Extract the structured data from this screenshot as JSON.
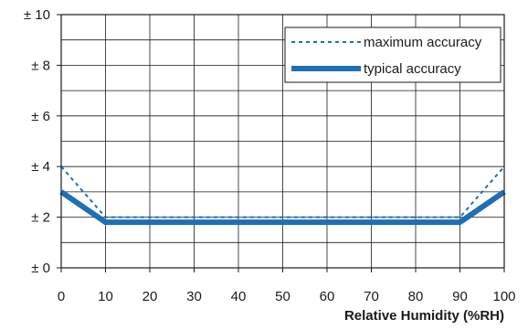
{
  "chart_data": {
    "type": "line",
    "title": "",
    "xlabel": "Relative Humidity (%RH)",
    "ylabel": "",
    "xlim": [
      0,
      100
    ],
    "ylim": [
      0,
      10
    ],
    "grid": true,
    "legend_position": "top-right",
    "x_ticks": [
      0,
      10,
      20,
      30,
      40,
      50,
      60,
      70,
      80,
      90,
      100
    ],
    "x_tick_labels": [
      "0",
      "10",
      "20",
      "30",
      "40",
      "50",
      "60",
      "70",
      "80",
      "90",
      "100"
    ],
    "y_ticks": [
      0,
      2,
      4,
      6,
      8,
      10
    ],
    "y_tick_labels": [
      "± 0",
      "± 2",
      "± 4",
      "± 6",
      "± 8",
      "± 10"
    ],
    "series": [
      {
        "name": "maximum accuracy",
        "style": "dotted",
        "color": "#1f6fb5",
        "x": [
          0,
          10,
          90,
          100
        ],
        "y": [
          4,
          2,
          2,
          4
        ]
      },
      {
        "name": "typical accuracy",
        "style": "solid-thick",
        "color": "#1f6fb5",
        "x": [
          0,
          10,
          90,
          100
        ],
        "y": [
          3,
          1.8,
          1.8,
          3
        ]
      }
    ]
  }
}
